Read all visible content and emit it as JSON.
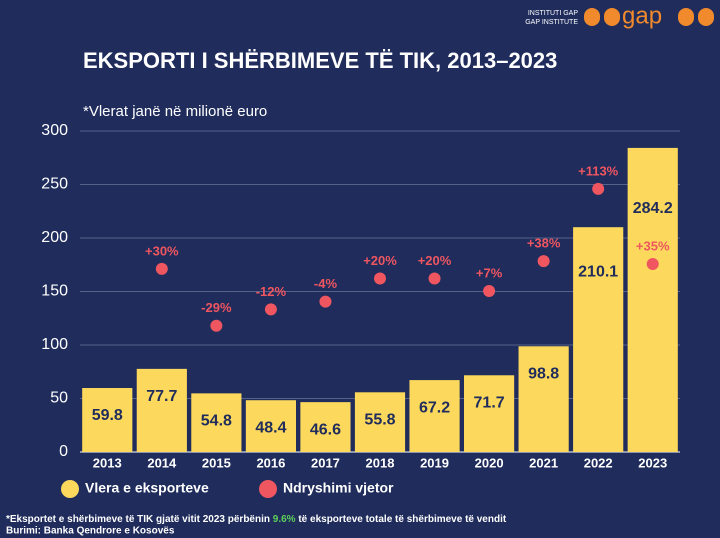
{
  "logo": {
    "line1": "INSTITUTI GAP",
    "line2": "GAP INSTITUTE",
    "mark": "gap"
  },
  "chart_data": {
    "type": "bar",
    "title": "EKSPORTI I SHËRBIMEVE TË TIK, 2013–2023",
    "subtitle": "*Vlerat janë në milionë euro",
    "categories": [
      "2013",
      "2014",
      "2015",
      "2016",
      "2017",
      "2018",
      "2019",
      "2020",
      "2021",
      "2022",
      "2023"
    ],
    "series": [
      {
        "name": "Vlera e eksporteve",
        "color": "#fcd95c",
        "values": [
          59.8,
          77.7,
          54.8,
          48.4,
          46.6,
          55.8,
          67.2,
          71.7,
          98.8,
          210.1,
          284.2
        ]
      },
      {
        "name": "Ndryshimi vjetor",
        "color": "#ef5660",
        "axis": "y2",
        "values": [
          null,
          30,
          -29,
          -12,
          -4,
          20,
          20,
          7,
          38,
          113,
          35
        ],
        "value_labels": [
          null,
          "+30%",
          "-29%",
          "-12%",
          "-4%",
          "+20%",
          "+20%",
          "+7%",
          "+38%",
          "+113%",
          "+35%"
        ]
      }
    ],
    "ylim": [
      0,
      300
    ],
    "yticks": [
      0,
      50,
      100,
      150,
      200,
      250,
      300
    ],
    "y2lim": [
      -160,
      173
    ],
    "grid": true,
    "footnote": {
      "before": "*Eksportet e shërbimeve të TIK gjatë vitit 2023 përbënin ",
      "highlight": "9.6%",
      "after": " të eksporteve totale të shërbimeve të vendit"
    },
    "source": "Burimi: Banka Qendrore e Kosovës"
  }
}
